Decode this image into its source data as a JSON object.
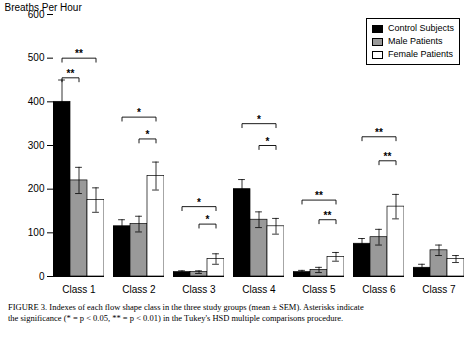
{
  "chart_data": {
    "type": "bar",
    "ylabel": "Breaths Per Hour",
    "categories": [
      "Class 1",
      "Class 2",
      "Class 3",
      "Class 4",
      "Class 5",
      "Class 6",
      "Class 7"
    ],
    "series": [
      {
        "name": "Control Subjects",
        "color": "#000000",
        "values": [
          400,
          115,
          10,
          200,
          10,
          75,
          20
        ],
        "errors": [
          50,
          15,
          3,
          22,
          4,
          12,
          8
        ]
      },
      {
        "name": "Male Patients",
        "color": "#999999",
        "values": [
          220,
          120,
          10,
          130,
          15,
          90,
          60
        ],
        "errors": [
          30,
          18,
          3,
          18,
          6,
          18,
          12
        ]
      },
      {
        "name": "Female Patients",
        "color": "#ffffff",
        "values": [
          175,
          230,
          40,
          115,
          45,
          160,
          40
        ],
        "errors": [
          28,
          32,
          12,
          18,
          10,
          28,
          8
        ]
      }
    ],
    "ylim": [
      0,
      600
    ],
    "yticks": [
      0,
      100,
      200,
      300,
      400,
      500,
      600
    ],
    "grid": false,
    "legend": "upper right",
    "annotations": [
      {
        "category": "Class 1",
        "from": "Control Subjects",
        "to": "Female Patients",
        "y": 490,
        "height": 10,
        "label": "**"
      },
      {
        "category": "Class 1",
        "from": "Control Subjects",
        "to": "Male Patients",
        "y": 445,
        "height": 10,
        "label": "**"
      },
      {
        "category": "Class 2",
        "from": "Control Subjects",
        "to": "Female Patients",
        "y": 355,
        "height": 10,
        "label": "*"
      },
      {
        "category": "Class 2",
        "from": "Male Patients",
        "to": "Female Patients",
        "y": 305,
        "height": 10,
        "label": "*"
      },
      {
        "category": "Class 3",
        "from": "Control Subjects",
        "to": "Female Patients",
        "y": 150,
        "height": 10,
        "label": "*"
      },
      {
        "category": "Class 3",
        "from": "Male Patients",
        "to": "Female Patients",
        "y": 110,
        "height": 10,
        "label": "*"
      },
      {
        "category": "Class 4",
        "from": "Control Subjects",
        "to": "Female Patients",
        "y": 340,
        "height": 10,
        "label": "*"
      },
      {
        "category": "Class 4",
        "from": "Male Patients",
        "to": "Female Patients",
        "y": 290,
        "height": 10,
        "label": "*"
      },
      {
        "category": "Class 5",
        "from": "Control Subjects",
        "to": "Female Patients",
        "y": 165,
        "height": 10,
        "label": "**"
      },
      {
        "category": "Class 5",
        "from": "Male Patients",
        "to": "Female Patients",
        "y": 120,
        "height": 10,
        "label": "**"
      },
      {
        "category": "Class 6",
        "from": "Control Subjects",
        "to": "Female Patients",
        "y": 310,
        "height": 10,
        "label": "**"
      },
      {
        "category": "Class 6",
        "from": "Male Patients",
        "to": "Female Patients",
        "y": 255,
        "height": 10,
        "label": "**"
      }
    ],
    "caption": "FIGURE 3. Indexes of each flow shape class in the three study groups (mean ± SEM). Asterisks indicate\nthe significance (* = p < 0.05, ** = p < 0.01) in the Tukey's HSD multiple comparisons procedure."
  }
}
